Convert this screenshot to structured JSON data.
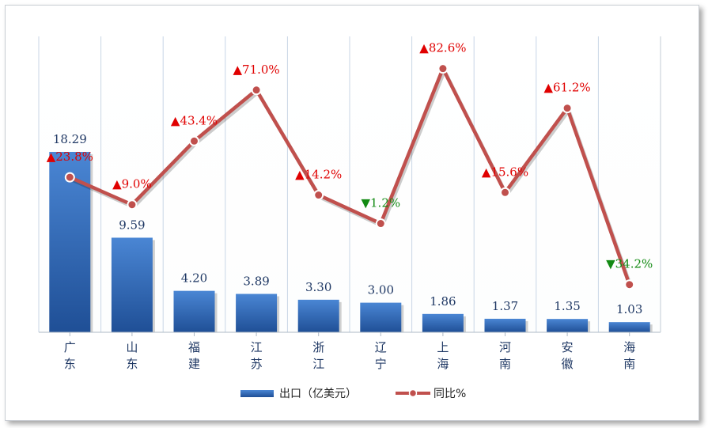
{
  "chart_data": {
    "type": "bar+line",
    "categories": [
      "广东",
      "山东",
      "福建",
      "江苏",
      "浙江",
      "辽宁",
      "上海",
      "河南",
      "安徽",
      "海南"
    ],
    "category_chars": [
      [
        "广",
        "东"
      ],
      [
        "山",
        "东"
      ],
      [
        "福",
        "建"
      ],
      [
        "江",
        "苏"
      ],
      [
        "浙",
        "江"
      ],
      [
        "辽",
        "宁"
      ],
      [
        "上",
        "海"
      ],
      [
        "河",
        "南"
      ],
      [
        "安",
        "徽"
      ],
      [
        "海",
        "南"
      ]
    ],
    "series": [
      {
        "name": "出口（亿美元）",
        "type": "bar",
        "values": [
          18.29,
          9.59,
          4.2,
          3.89,
          3.3,
          3.0,
          1.86,
          1.37,
          1.35,
          1.03
        ],
        "labels": [
          "18.29",
          "9.59",
          "4.20",
          "3.89",
          "3.30",
          "3.00",
          "1.86",
          "1.37",
          "1.35",
          "1.03"
        ],
        "color": "#2e68b8"
      },
      {
        "name": "同比%",
        "type": "line",
        "values": [
          23.8,
          9.0,
          43.4,
          71.0,
          14.2,
          -1.2,
          82.6,
          15.6,
          61.2,
          -34.2
        ],
        "labels": [
          "▲23.8%",
          "▲9.0%",
          "▲43.4%",
          "▲71.0%",
          "▲14.2%",
          "▼1.2%",
          "▲82.6%",
          "▲15.6%",
          "▲61.2%",
          "▼34.2%"
        ],
        "label_colors": [
          "#e00000",
          "#e00000",
          "#e00000",
          "#e00000",
          "#e00000",
          "#138a13",
          "#e00000",
          "#e00000",
          "#e00000",
          "#138a13"
        ],
        "color": "#c0504d"
      }
    ],
    "bar_ylim": [
      0,
      30
    ],
    "line_ylim": [
      -60,
      100
    ],
    "grid": "vertical",
    "legend_position": "bottom"
  }
}
